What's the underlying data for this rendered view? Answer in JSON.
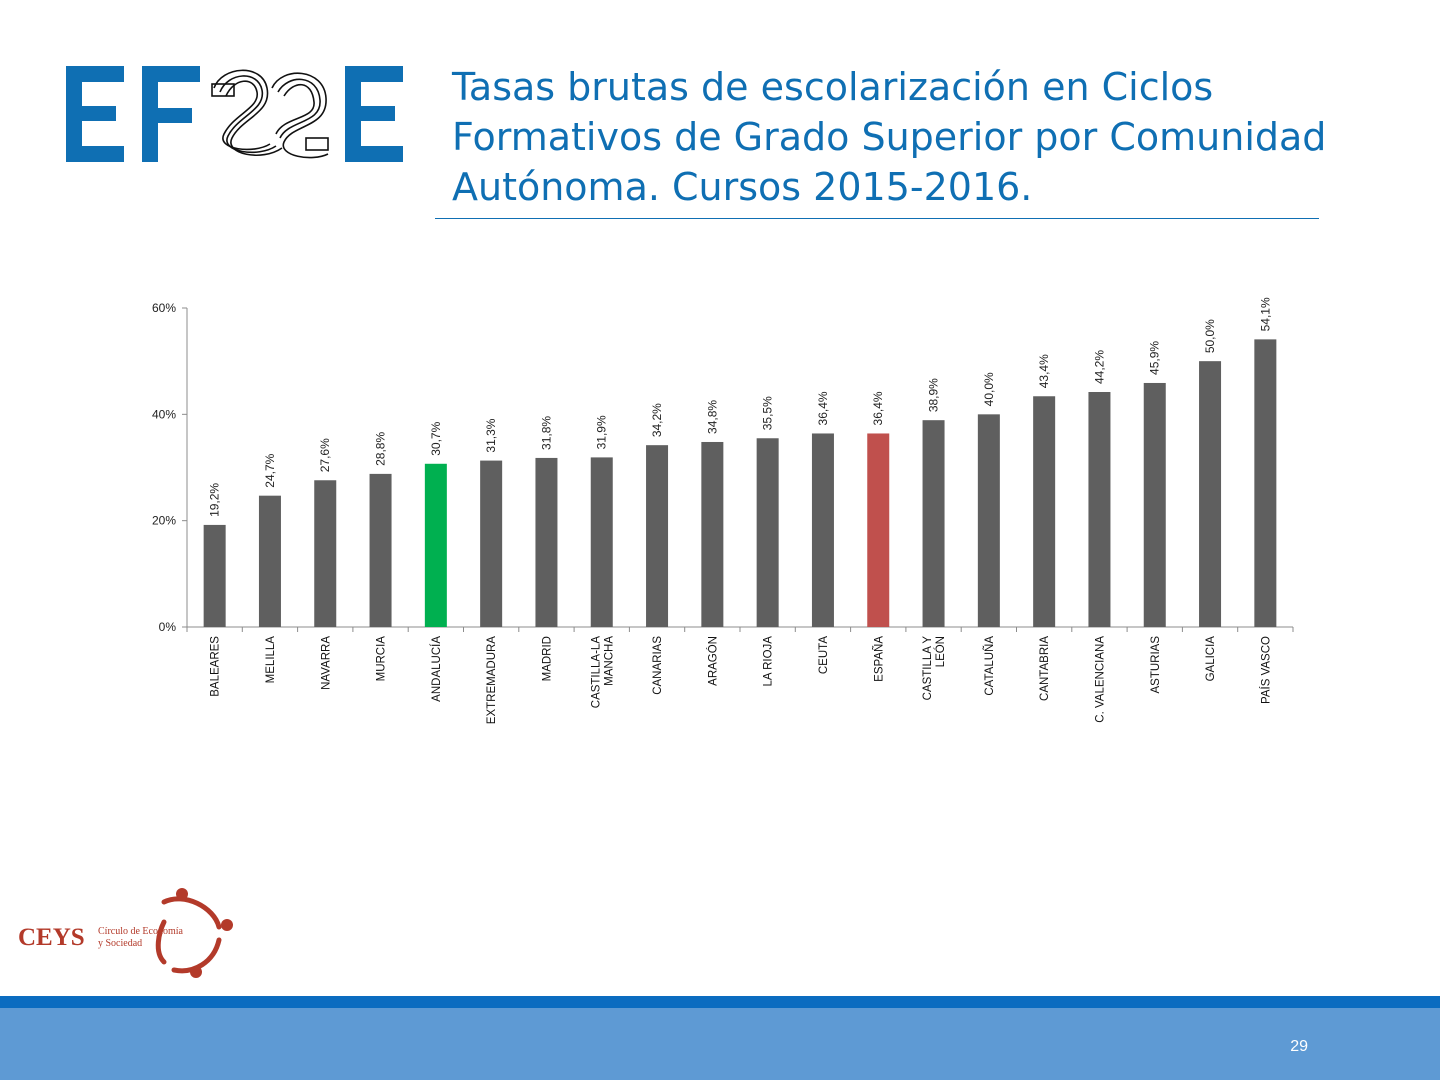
{
  "slide": {
    "title_line1": "Tasas brutas de escolarización en Ciclos",
    "title_line2": "Formativos de Grado Superior por Comunidad",
    "title_line3": "Autónoma. Cursos 2015-2016.",
    "logo_text": "EFSE",
    "page_number": "29"
  },
  "footer_logo": {
    "brand": "CEYS",
    "line1": "Círculo de Economía",
    "line2": "y Sociedad"
  },
  "colors": {
    "title": "#0f6fb3",
    "bar_default": "#5f5f5f",
    "bar_andalucia": "#00b050",
    "bar_espana": "#c0504d",
    "footer": "#5e9ad4",
    "footer_line": "#0b6cc0"
  },
  "chart_data": {
    "type": "bar",
    "categories": [
      "BALEARES",
      "MELILLA",
      "NAVARRA",
      "MURCIA",
      "ANDALUCÍA",
      "EXTREMADURA",
      "MADRID",
      "CASTILLA-LA MANCHA",
      "CANARIAS",
      "ARAGÓN",
      "LA RIOJA",
      "CEUTA",
      "ESPAÑA",
      "CASTILLA Y LEÓN",
      "CATALUÑA",
      "CANTABRIA",
      "C. VALENCIANA",
      "ASTURIAS",
      "GALICIA",
      "PAÍS VASCO"
    ],
    "category_lines": [
      [
        "BALEARES"
      ],
      [
        "MELILLA"
      ],
      [
        "NAVARRA"
      ],
      [
        "MURCIA"
      ],
      [
        "ANDALUCÍA"
      ],
      [
        "EXTREMADURA"
      ],
      [
        "MADRID"
      ],
      [
        "CASTILLA-LA",
        "MANCHA"
      ],
      [
        "CANARIAS"
      ],
      [
        "ARAGÓN"
      ],
      [
        "LA RIOJA"
      ],
      [
        "CEUTA"
      ],
      [
        "ESPAÑA"
      ],
      [
        "CASTILLA Y",
        "LEÓN"
      ],
      [
        "CATALUÑA"
      ],
      [
        "CANTABRIA"
      ],
      [
        "C. VALENCIANA"
      ],
      [
        "ASTURIAS"
      ],
      [
        "GALICIA"
      ],
      [
        "PAÍS VASCO"
      ]
    ],
    "values": [
      19.2,
      24.7,
      27.6,
      28.8,
      30.7,
      31.3,
      31.8,
      31.9,
      34.2,
      34.8,
      35.5,
      36.4,
      36.4,
      38.9,
      40.0,
      43.4,
      44.2,
      45.9,
      50.0,
      54.1
    ],
    "data_labels": [
      "19,2%",
      "24,7%",
      "27,6%",
      "28,8%",
      "30,7%",
      "31,3%",
      "31,8%",
      "31,9%",
      "34,2%",
      "34,8%",
      "35,5%",
      "36,4%",
      "36,4%",
      "38,9%",
      "40,0%",
      "43,4%",
      "44,2%",
      "45,9%",
      "50,0%",
      "54,1%"
    ],
    "highlight": {
      "ANDALUCÍA": "#00b050",
      "ESPAÑA": "#c0504d"
    },
    "yticks": [
      0,
      20,
      40,
      60
    ],
    "ytick_labels": [
      "0%",
      "20%",
      "40%",
      "60%"
    ],
    "ylim": [
      0,
      60
    ],
    "grid": false,
    "legend": "none"
  }
}
